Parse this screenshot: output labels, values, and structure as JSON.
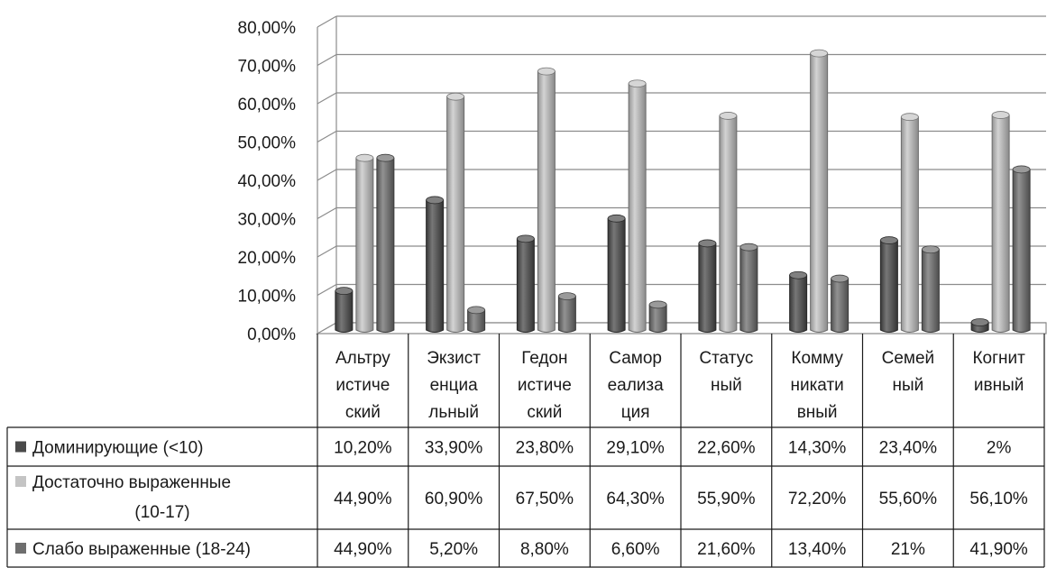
{
  "colors": {
    "series": [
      "#4a4a4a",
      "#c4c4c4",
      "#6e6e6e"
    ],
    "grid": "#8c8c8c",
    "wall": "#ffffff"
  },
  "chart_data": {
    "type": "bar",
    "style": "3d-clustered-column-with-data-table",
    "title": "",
    "xlabel": "",
    "ylabel": "",
    "ylim": [
      0,
      80
    ],
    "yticks": [
      "0,00%",
      "10,00%",
      "20,00%",
      "30,00%",
      "40,00%",
      "50,00%",
      "60,00%",
      "70,00%",
      "80,00%"
    ],
    "grid": true,
    "legend_placement": "data-table-left",
    "categories": [
      [
        "Альтру",
        "истиче",
        "ский"
      ],
      [
        "Экзист",
        "енциа",
        "льный"
      ],
      [
        "Гедон",
        "истиче",
        "ский"
      ],
      [
        "Самор",
        "еализа",
        "ция"
      ],
      [
        "Статус",
        "ный"
      ],
      [
        "Комму",
        "никати",
        "вный"
      ],
      [
        "Семей",
        "ный"
      ],
      [
        "Когнит",
        "ивный"
      ]
    ],
    "series": [
      {
        "name": "Доминирующие (<10)",
        "name_lines": [
          "Доминирующие (<10)"
        ],
        "values": [
          10.2,
          33.9,
          23.8,
          29.1,
          22.6,
          14.3,
          23.4,
          2
        ],
        "labels": [
          "10,20%",
          "33,90%",
          "23,80%",
          "29,10%",
          "22,60%",
          "14,30%",
          "23,40%",
          "2%"
        ]
      },
      {
        "name": "Достаточно выраженные (10-17)",
        "name_lines": [
          "Достаточно выраженные",
          "(10-17)"
        ],
        "values": [
          44.9,
          60.9,
          67.5,
          64.3,
          55.9,
          72.2,
          55.6,
          56.1
        ],
        "labels": [
          "44,90%",
          "60,90%",
          "67,50%",
          "64,30%",
          "55,90%",
          "72,20%",
          "55,60%",
          "56,10%"
        ]
      },
      {
        "name": "Слабо выраженные (18-24)",
        "name_lines": [
          "Слабо выраженные (18-24)"
        ],
        "values": [
          44.9,
          5.2,
          8.8,
          6.6,
          21.6,
          13.4,
          21,
          41.9
        ],
        "labels": [
          "44,90%",
          "5,20%",
          "8,80%",
          "6,60%",
          "21,60%",
          "13,40%",
          "21%",
          "41,90%"
        ]
      }
    ]
  }
}
